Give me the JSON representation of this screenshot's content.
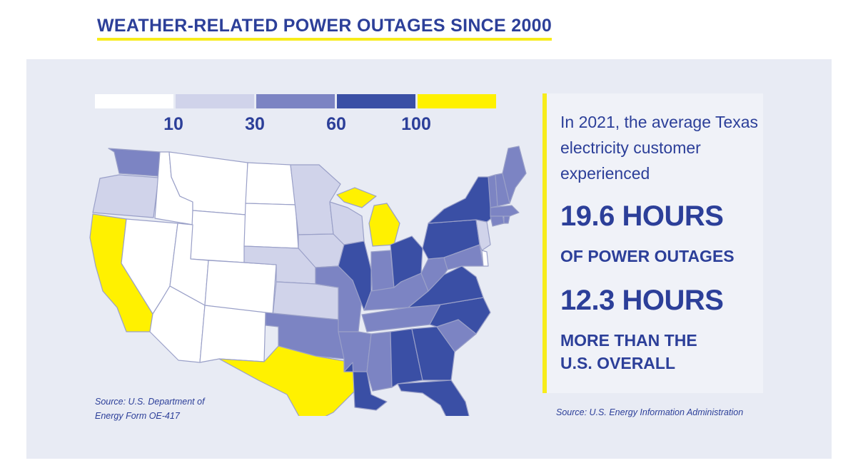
{
  "title": "WEATHER-RELATED POWER OUTAGES SINCE 2000",
  "legend": {
    "colors": [
      "#ffffff",
      "#d0d3ea",
      "#7c84c3",
      "#3a4fa5",
      "#fff100"
    ],
    "ticks": [
      "10",
      "30",
      "60",
      "100"
    ]
  },
  "map_source": {
    "line1": "Source: U.S. Department of",
    "line2": "Energy Form OE-417"
  },
  "stat": {
    "intro": "In 2021, the average Texas electricity customer experienced",
    "value1": "19.6 HOURS",
    "label1": "OF POWER OUTAGES",
    "value2": "12.3 HOURS",
    "label2_line1": "MORE THAN THE",
    "label2_line2": "U.S. OVERALL"
  },
  "stat_source": "Source: U.S. Energy Information Administration",
  "colors": {
    "brand_blue": "#2c3f99",
    "accent_yellow": "#f7ec1a",
    "panel_bg": "#e8ebf4"
  }
}
